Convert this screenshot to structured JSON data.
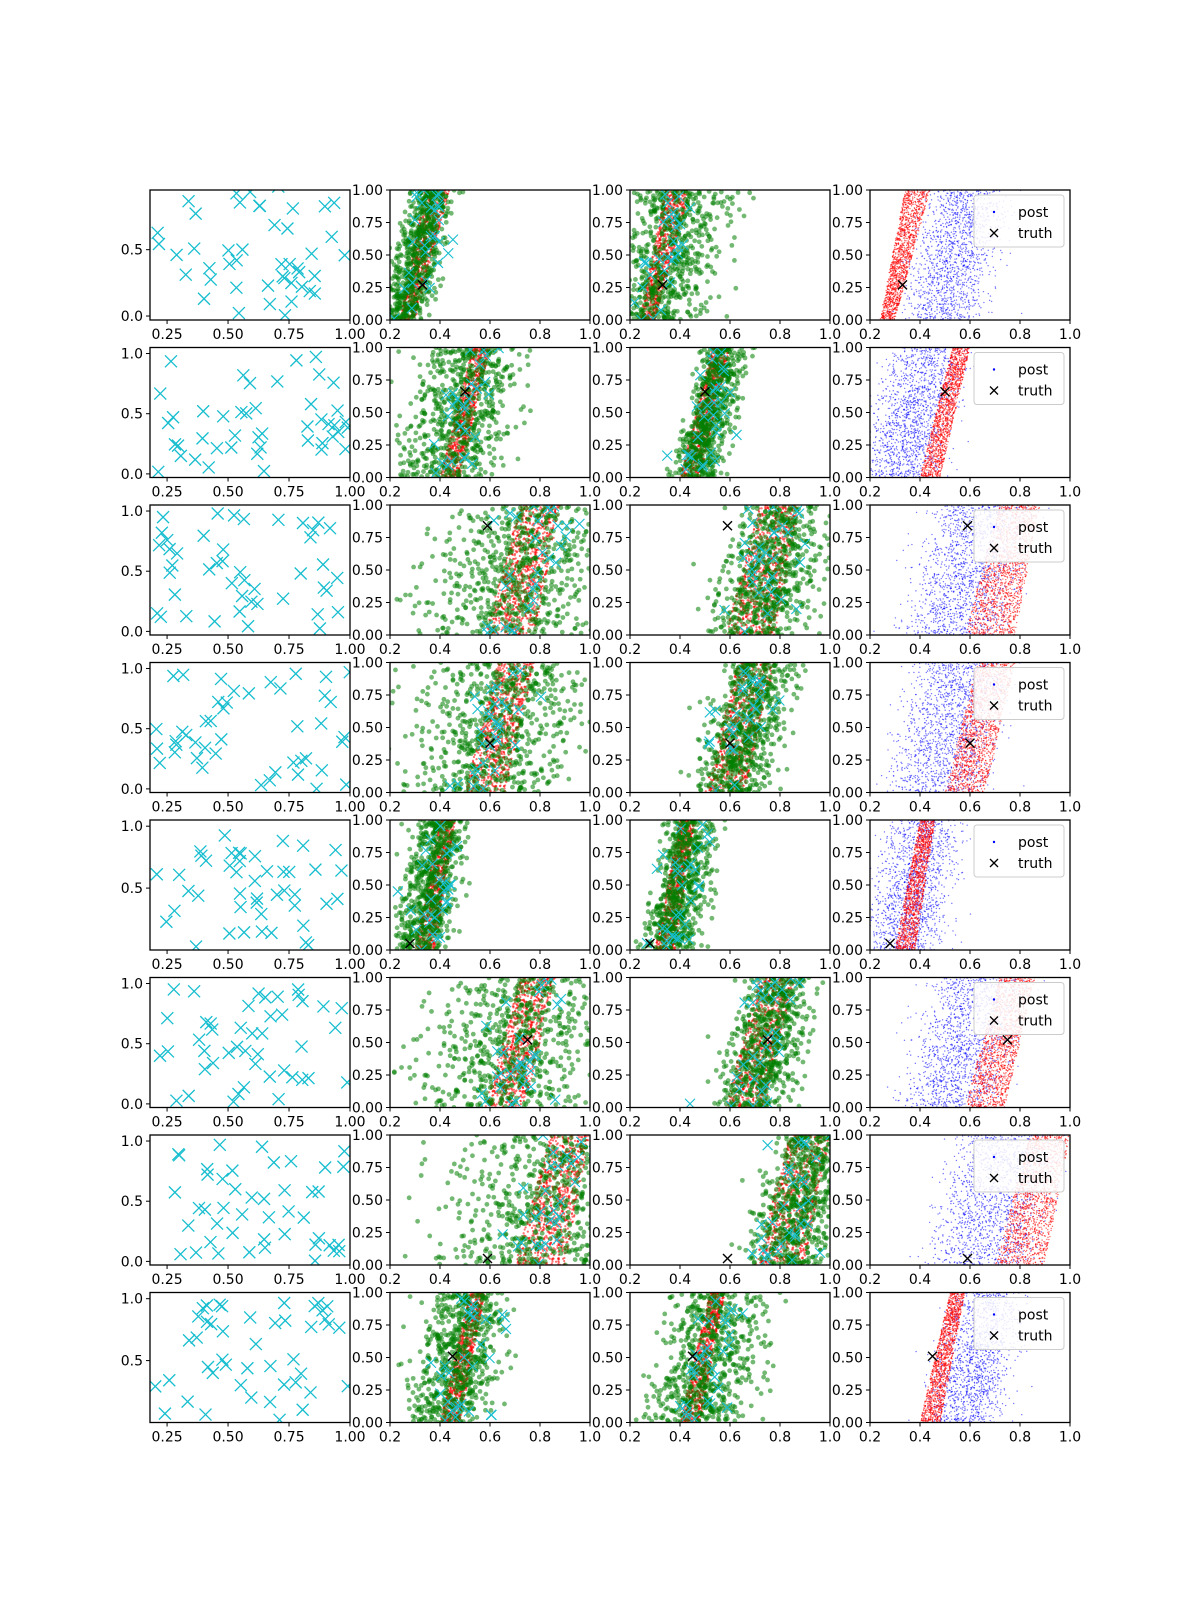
{
  "figure": {
    "title": "",
    "grid": "8 rows x 4 columns of scatter panels",
    "colors": {
      "cyan": "#17becf",
      "red": "#ff0000",
      "green": "#008000",
      "blue": "#0000ff",
      "black": "#000000"
    }
  },
  "chart_data": {
    "type": "scatter",
    "legend": {
      "entries": [
        "post",
        "truth"
      ],
      "placement": "upper right"
    },
    "rows": [
      {
        "truth": [
          0.33,
          0.27
        ],
        "col1_xticks": [
          "0.25",
          "0.50",
          "0.75",
          "1.00"
        ],
        "col1_yticks": [
          "0.0",
          "0.5"
        ],
        "col1_xlim": [
          0.18,
          1.0
        ],
        "col1_ylim": [
          -0.03,
          0.95
        ],
        "band": [
          [
            0.24,
            0.3
          ],
          [
            0.34,
            0.44
          ]
        ],
        "green_spread": [
          0.04,
          0.1
        ],
        "blue_extra": 0.16
      },
      {
        "truth": [
          0.5,
          0.66
        ],
        "col1_xticks": [
          "0.25",
          "0.50",
          "0.75",
          "1.00"
        ],
        "col1_yticks": [
          "0.0",
          "0.5",
          "1.0"
        ],
        "col1_xlim": [
          0.18,
          1.0
        ],
        "col1_ylim": [
          -0.03,
          1.05
        ],
        "band": [
          [
            0.4,
            0.48
          ],
          [
            0.53,
            0.6
          ]
        ],
        "green_spread": [
          0.1,
          0.04
        ],
        "blue_extra": -0.18
      },
      {
        "truth": [
          0.59,
          0.84
        ],
        "col1_xticks": [
          "0.25",
          "0.50",
          "0.75",
          "1.00"
        ],
        "col1_yticks": [
          "0.0",
          "0.5",
          "1.0"
        ],
        "col1_xlim": [
          0.18,
          1.0
        ],
        "col1_ylim": [
          -0.03,
          1.05
        ],
        "band": [
          [
            0.58,
            0.78
          ],
          [
            0.72,
            0.88
          ]
        ],
        "green_spread": [
          0.18,
          0.08
        ],
        "blue_extra": -0.2
      },
      {
        "truth": [
          0.6,
          0.38
        ],
        "col1_xticks": [
          "0.25",
          "0.50",
          "0.75",
          "1.00"
        ],
        "col1_yticks": [
          "0.0",
          "0.5",
          "1.0"
        ],
        "col1_xlim": [
          0.18,
          1.0
        ],
        "col1_ylim": [
          -0.03,
          1.05
        ],
        "band": [
          [
            0.5,
            0.66
          ],
          [
            0.63,
            0.78
          ]
        ],
        "green_spread": [
          0.16,
          0.06
        ],
        "blue_extra": -0.18
      },
      {
        "truth": [
          0.28,
          0.05
        ],
        "col1_xticks": [
          "0.25",
          "0.50",
          "0.75",
          "1.00"
        ],
        "col1_yticks": [
          "0.5",
          "1.0"
        ],
        "col1_xlim": [
          0.18,
          1.0
        ],
        "col1_ylim": [
          0.0,
          1.05
        ],
        "band": [
          [
            0.3,
            0.38
          ],
          [
            0.4,
            0.46
          ]
        ],
        "green_spread": [
          0.05,
          0.05
        ],
        "blue_extra": -0.06
      },
      {
        "truth": [
          0.75,
          0.52
        ],
        "col1_xticks": [
          "0.25",
          "0.50",
          "0.75",
          "1.00"
        ],
        "col1_yticks": [
          "0.0",
          "0.5",
          "1.0"
        ],
        "col1_xlim": [
          0.18,
          1.0
        ],
        "col1_ylim": [
          -0.03,
          1.05
        ],
        "band": [
          [
            0.58,
            0.74
          ],
          [
            0.72,
            0.86
          ]
        ],
        "green_spread": [
          0.18,
          0.06
        ],
        "blue_extra": -0.2
      },
      {
        "truth": [
          0.59,
          0.05
        ],
        "col1_xticks": [
          "0.25",
          "0.50",
          "0.75",
          "1.00"
        ],
        "col1_yticks": [
          "0.0",
          "0.5",
          "1.0"
        ],
        "col1_xlim": [
          0.18,
          1.0
        ],
        "col1_ylim": [
          -0.03,
          1.05
        ],
        "band": [
          [
            0.7,
            0.9
          ],
          [
            0.84,
            1.0
          ]
        ],
        "green_spread": [
          0.2,
          0.06
        ],
        "blue_extra": -0.22
      },
      {
        "truth": [
          0.45,
          0.51
        ],
        "col1_xticks": [
          "0.25",
          "0.50",
          "0.75",
          "1.00"
        ],
        "col1_yticks": [
          "0.5",
          "1.0"
        ],
        "col1_xlim": [
          0.18,
          1.0
        ],
        "col1_ylim": [
          0.0,
          1.05
        ],
        "band": [
          [
            0.4,
            0.48
          ],
          [
            0.52,
            0.58
          ]
        ],
        "green_spread": [
          0.08,
          0.1
        ],
        "blue_extra": 0.08
      }
    ],
    "posterior_panels": {
      "xlim": [
        0.2,
        1.0
      ],
      "ylim": [
        0.0,
        1.0
      ],
      "xticks": [
        "0.2",
        "0.4",
        "0.6",
        "0.8",
        "1.0"
      ],
      "yticks": [
        "0.00",
        "0.25",
        "0.50",
        "0.75",
        "1.00"
      ]
    }
  }
}
